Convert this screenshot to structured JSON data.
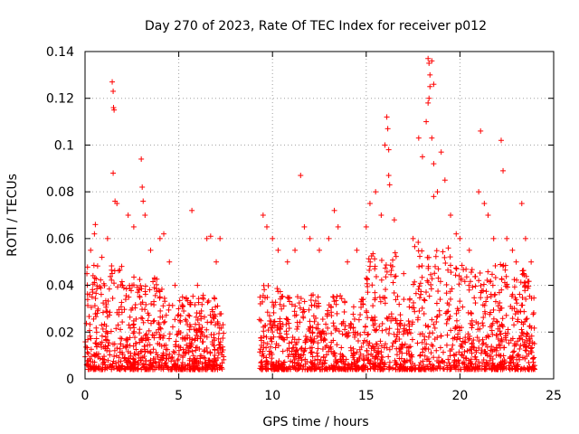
{
  "chart_data": {
    "type": "scatter",
    "title": "Day 270 of 2023, Rate Of TEC Index for receiver p012",
    "xlabel": "GPS time / hours",
    "ylabel": "ROTI / TECUs",
    "xlim": [
      0,
      25
    ],
    "ylim": [
      0,
      0.14
    ],
    "xticks": [
      0,
      5,
      10,
      15,
      20,
      25
    ],
    "xtick_labels": [
      "0",
      "5",
      "10",
      "15",
      "20",
      "25"
    ],
    "yticks": [
      0,
      0.02,
      0.04,
      0.06,
      0.08,
      0.1,
      0.12,
      0.14
    ],
    "ytick_labels": [
      "0",
      "0.02",
      "0.04",
      "0.06",
      "0.08",
      "0.1",
      "0.12",
      "0.14"
    ],
    "grid": true,
    "marker": "+",
    "color": "#ff0000",
    "data_gaps_hours": [
      [
        7.4,
        9.3
      ],
      [
        24.0,
        25.0
      ]
    ],
    "series": [
      {
        "name": "ROTI",
        "points": [
          [
            0.1,
            0.045
          ],
          [
            0.3,
            0.055
          ],
          [
            0.5,
            0.062
          ],
          [
            0.55,
            0.066
          ],
          [
            0.9,
            0.052
          ],
          [
            1.2,
            0.06
          ],
          [
            1.45,
            0.127
          ],
          [
            1.5,
            0.123
          ],
          [
            1.52,
            0.116
          ],
          [
            1.55,
            0.115
          ],
          [
            1.5,
            0.088
          ],
          [
            1.6,
            0.076
          ],
          [
            1.7,
            0.075
          ],
          [
            2.0,
            0.04
          ],
          [
            2.3,
            0.07
          ],
          [
            2.6,
            0.065
          ],
          [
            3.0,
            0.094
          ],
          [
            3.05,
            0.082
          ],
          [
            3.1,
            0.076
          ],
          [
            3.2,
            0.07
          ],
          [
            3.5,
            0.055
          ],
          [
            4.0,
            0.06
          ],
          [
            4.2,
            0.062
          ],
          [
            4.5,
            0.05
          ],
          [
            4.8,
            0.04
          ],
          [
            5.2,
            0.035
          ],
          [
            5.6,
            0.032
          ],
          [
            5.7,
            0.072
          ],
          [
            6.0,
            0.04
          ],
          [
            6.5,
            0.06
          ],
          [
            6.7,
            0.061
          ],
          [
            7.0,
            0.05
          ],
          [
            7.2,
            0.06
          ],
          [
            9.5,
            0.07
          ],
          [
            9.7,
            0.065
          ],
          [
            10.0,
            0.06
          ],
          [
            10.3,
            0.055
          ],
          [
            10.8,
            0.05
          ],
          [
            11.2,
            0.055
          ],
          [
            11.5,
            0.087
          ],
          [
            11.7,
            0.065
          ],
          [
            12.0,
            0.06
          ],
          [
            12.5,
            0.055
          ],
          [
            13.0,
            0.06
          ],
          [
            13.3,
            0.072
          ],
          [
            13.5,
            0.065
          ],
          [
            14.0,
            0.05
          ],
          [
            14.5,
            0.055
          ],
          [
            15.0,
            0.065
          ],
          [
            15.2,
            0.075
          ],
          [
            15.5,
            0.08
          ],
          [
            15.8,
            0.07
          ],
          [
            16.0,
            0.1
          ],
          [
            16.1,
            0.112
          ],
          [
            16.15,
            0.107
          ],
          [
            16.2,
            0.098
          ],
          [
            16.2,
            0.087
          ],
          [
            16.25,
            0.083
          ],
          [
            16.5,
            0.068
          ],
          [
            17.0,
            0.045
          ],
          [
            17.5,
            0.06
          ],
          [
            17.8,
            0.103
          ],
          [
            18.0,
            0.095
          ],
          [
            18.2,
            0.11
          ],
          [
            18.3,
            0.137
          ],
          [
            18.35,
            0.135
          ],
          [
            18.4,
            0.13
          ],
          [
            18.4,
            0.125
          ],
          [
            18.35,
            0.12
          ],
          [
            18.3,
            0.118
          ],
          [
            18.5,
            0.136
          ],
          [
            18.6,
            0.126
          ],
          [
            18.5,
            0.103
          ],
          [
            18.6,
            0.092
          ],
          [
            18.6,
            0.078
          ],
          [
            18.8,
            0.08
          ],
          [
            19.0,
            0.097
          ],
          [
            19.2,
            0.085
          ],
          [
            19.5,
            0.07
          ],
          [
            19.8,
            0.062
          ],
          [
            20.0,
            0.06
          ],
          [
            20.5,
            0.055
          ],
          [
            21.0,
            0.08
          ],
          [
            21.1,
            0.106
          ],
          [
            21.3,
            0.075
          ],
          [
            21.5,
            0.07
          ],
          [
            21.8,
            0.06
          ],
          [
            22.2,
            0.102
          ],
          [
            22.3,
            0.089
          ],
          [
            22.5,
            0.06
          ],
          [
            22.8,
            0.055
          ],
          [
            23.0,
            0.05
          ],
          [
            23.3,
            0.075
          ],
          [
            23.5,
            0.06
          ],
          [
            23.8,
            0.05
          ]
        ]
      }
    ]
  }
}
